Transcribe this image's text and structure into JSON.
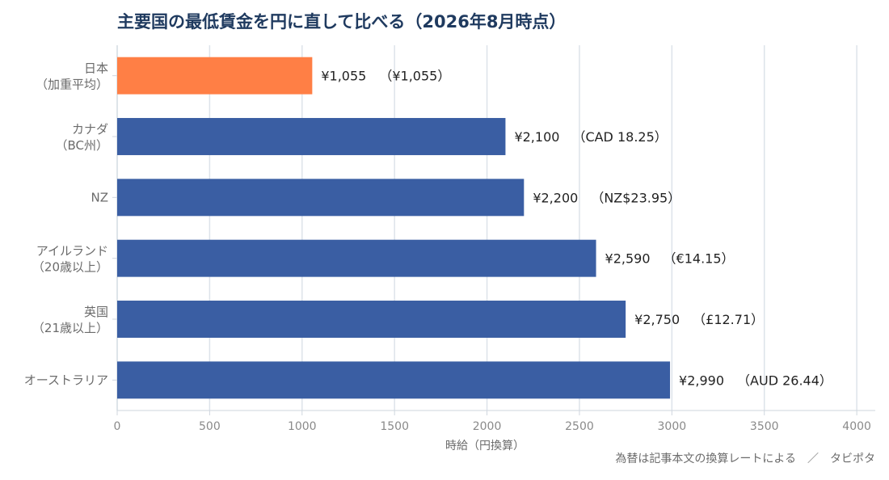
{
  "chart_data": {
    "type": "bar",
    "orientation": "horizontal",
    "title": "主要国の最低賃金を円に直して比べる（2026年8月時点）",
    "xlabel": "時給（円換算）",
    "xlim": [
      0,
      4100
    ],
    "xticks": [
      0,
      500,
      1000,
      1500,
      2000,
      2500,
      3000,
      3500,
      4000
    ],
    "grid": "vertical",
    "categories": [
      {
        "line1": "日本",
        "line2": "（加重平均）"
      },
      {
        "line1": "カナダ",
        "line2": "（BC州）"
      },
      {
        "line1": "NZ",
        "line2": ""
      },
      {
        "line1": "アイルランド",
        "line2": "（20歳以上）"
      },
      {
        "line1": "英国",
        "line2": "（21歳以上）"
      },
      {
        "line1": "オーストラリア",
        "line2": ""
      }
    ],
    "values": [
      1055,
      2100,
      2200,
      2590,
      2750,
      2990
    ],
    "value_labels": [
      "¥1,055",
      "¥2,100",
      "¥2,200",
      "¥2,590",
      "¥2,750",
      "¥2,990"
    ],
    "local_labels": [
      "（¥1,055）",
      "（CAD 18.25）",
      "（NZ$23.95）",
      "（€14.15）",
      "（£12.71）",
      "（AUD 26.44）"
    ],
    "colors": {
      "highlight": "#ff7f45",
      "bar": "#3a5ea3",
      "grid": "#dde3ea",
      "title": "#1f3a5f"
    },
    "highlight_index": 0,
    "footnote": "為替は記事本文の換算レートによる　／　タビポタ"
  }
}
